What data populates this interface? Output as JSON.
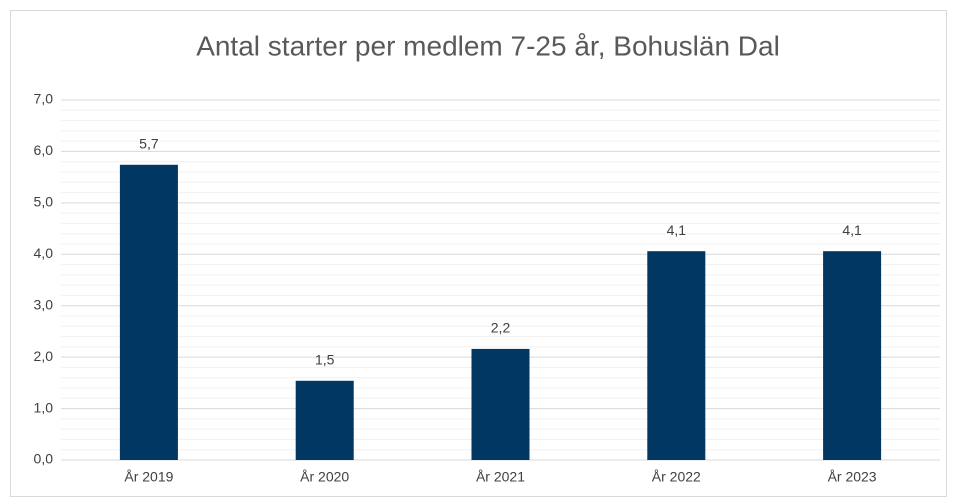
{
  "chart_data": {
    "type": "bar",
    "title": "Antal starter per medlem 7-25 år, Bohuslän Dal",
    "categories": [
      "År 2019",
      "År 2020",
      "År 2021",
      "År 2022",
      "År 2023"
    ],
    "values": [
      5.74,
      1.54,
      2.16,
      4.06,
      4.06
    ],
    "value_labels": [
      "5,7",
      "1,5",
      "2,2",
      "4,1",
      "4,1"
    ],
    "color": "#003763",
    "ylim": [
      0,
      7
    ],
    "yticks": [
      {
        "value": 0,
        "label": "0,0"
      },
      {
        "value": 1,
        "label": "1,0"
      },
      {
        "value": 2,
        "label": "2,0"
      },
      {
        "value": 3,
        "label": "3,0"
      },
      {
        "value": 4,
        "label": "4,0"
      },
      {
        "value": 5,
        "label": "5,0"
      },
      {
        "value": 6,
        "label": "6,0"
      },
      {
        "value": 7,
        "label": "7,0"
      }
    ],
    "minor_yticks": [
      0.2,
      0.4,
      0.6,
      0.8,
      1.2,
      1.4,
      1.6,
      1.8,
      2.2,
      2.4,
      2.6,
      2.8,
      3.2,
      3.4,
      3.6,
      3.8,
      4.2,
      4.4,
      4.6,
      4.8,
      5.2,
      5.4,
      5.6,
      5.8,
      6.2,
      6.4,
      6.6,
      6.8
    ],
    "grid": true
  }
}
